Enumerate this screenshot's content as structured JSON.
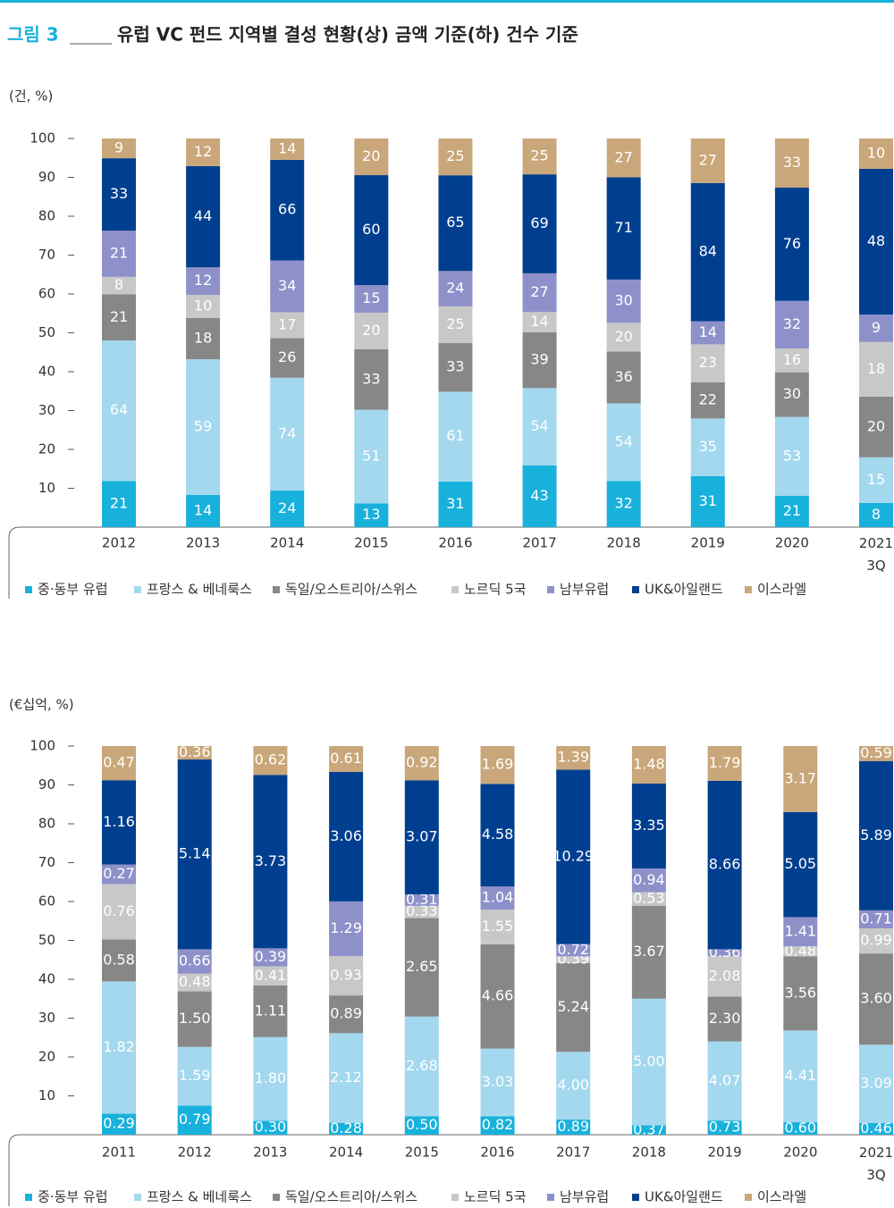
{
  "header": {
    "figure_label": "그림 3",
    "title": "유럽 VC 펀드 지역별 결성 현황(상) 금액 기준(하) 건수 기준"
  },
  "chart_data": [
    {
      "type": "bar",
      "stacking": "percent",
      "unit_label": "(건, %)",
      "categories": [
        "2012",
        "2013",
        "2014",
        "2015",
        "2016",
        "2017",
        "2018",
        "2019",
        "2020",
        "2021\n3Q"
      ],
      "ylim": [
        0,
        100
      ],
      "yticks": [
        10,
        20,
        30,
        40,
        50,
        60,
        70,
        80,
        90,
        100
      ],
      "series": [
        {
          "name": "중·동부 유럽",
          "color": "#18b1dc",
          "values": [
            21,
            14,
            24,
            13,
            31,
            43,
            32,
            31,
            21,
            8
          ]
        },
        {
          "name": "프랑스 & 베네룩스",
          "color": "#a3d8ee",
          "values": [
            64,
            59,
            74,
            51,
            61,
            54,
            54,
            35,
            53,
            15
          ]
        },
        {
          "name": "독일/오스트리아/스위스",
          "color": "#878787",
          "values": [
            21,
            18,
            26,
            33,
            33,
            39,
            36,
            22,
            30,
            20
          ]
        },
        {
          "name": "노르딕 5국",
          "color": "#c8c8c8",
          "values": [
            8,
            10,
            17,
            20,
            25,
            14,
            20,
            23,
            16,
            18
          ]
        },
        {
          "name": "남부유럽",
          "color": "#8e91c9",
          "values": [
            21,
            12,
            34,
            15,
            24,
            27,
            30,
            14,
            32,
            9
          ]
        },
        {
          "name": "UK&아일랜드",
          "color": "#003f8f",
          "values": [
            33,
            44,
            66,
            60,
            65,
            69,
            71,
            84,
            76,
            48
          ]
        },
        {
          "name": "이스라엘",
          "color": "#c9a77a",
          "values": [
            9,
            12,
            14,
            20,
            25,
            25,
            27,
            27,
            33,
            10
          ]
        }
      ]
    },
    {
      "type": "bar",
      "stacking": "percent",
      "unit_label": "(€십억, %)",
      "categories": [
        "2011",
        "2012",
        "2013",
        "2014",
        "2015",
        "2016",
        "2017",
        "2018",
        "2019",
        "2020",
        "2021\n3Q"
      ],
      "ylim": [
        0,
        100
      ],
      "yticks": [
        10,
        20,
        30,
        40,
        50,
        60,
        70,
        80,
        90,
        100
      ],
      "series": [
        {
          "name": "중·동부 유럽",
          "color": "#18b1dc",
          "values": [
            0.29,
            0.79,
            0.3,
            0.28,
            0.5,
            0.82,
            0.89,
            0.37,
            0.73,
            0.6,
            0.46
          ],
          "value_labels": [
            "0.29",
            "0.79",
            "0.30",
            "0.28",
            "0.50",
            "0.82",
            "0.89",
            "0.37",
            "0.73",
            "0.60",
            "0.46"
          ]
        },
        {
          "name": "프랑스 & 베네룩스",
          "color": "#a3d8ee",
          "values": [
            1.82,
            1.59,
            1.8,
            2.12,
            2.68,
            3.03,
            4.0,
            5.0,
            4.07,
            4.41,
            3.09
          ],
          "value_labels": [
            "1.82",
            "1.59",
            "1.80",
            "2.12",
            "2.68",
            "3.03",
            "4.00",
            "5.00",
            "4.07",
            "4.41",
            "3.09"
          ]
        },
        {
          "name": "독일/오스트리아/스위스",
          "color": "#878787",
          "values": [
            0.58,
            1.5,
            1.11,
            0.89,
            2.65,
            4.66,
            5.24,
            3.67,
            2.3,
            3.56,
            3.6
          ],
          "value_labels": [
            "0.58",
            "1.50",
            "1.11",
            "0.89",
            "2.65",
            "4.66",
            "5.24",
            "3.67",
            "2.30",
            "3.56",
            "3.60"
          ]
        },
        {
          "name": "노르딕 5국",
          "color": "#c8c8c8",
          "values": [
            0.76,
            0.48,
            0.41,
            0.93,
            0.33,
            1.55,
            0.39,
            0.53,
            2.08,
            0.48,
            0.99
          ],
          "value_labels": [
            "0.76",
            "0.48",
            "0.41",
            "0.93",
            "0.33",
            "1.55",
            "0.39",
            "0.53",
            "2.08",
            "0.48",
            "0.99"
          ]
        },
        {
          "name": "남부유럽",
          "color": "#8e91c9",
          "values": [
            0.27,
            0.66,
            0.39,
            1.29,
            0.31,
            1.04,
            0.72,
            0.94,
            0.36,
            1.41,
            0.71
          ],
          "value_labels": [
            "0.27",
            "0.66",
            "0.39",
            "1.29",
            "0.31",
            "1.04",
            "0.72",
            "0.94",
            "0.36",
            "1.41",
            "0.71"
          ]
        },
        {
          "name": "UK&아일랜드",
          "color": "#003f8f",
          "values": [
            1.16,
            5.14,
            3.73,
            3.06,
            3.07,
            4.58,
            10.29,
            3.35,
            8.66,
            5.05,
            5.89
          ],
          "value_labels": [
            "1.16",
            "5.14",
            "3.73",
            "3.06",
            "3.07",
            "4.58",
            "10.29",
            "3.35",
            "8.66",
            "5.05",
            "5.89"
          ]
        },
        {
          "name": "이스라엘",
          "color": "#c9a77a",
          "values": [
            0.47,
            0.36,
            0.62,
            0.61,
            0.92,
            1.69,
            1.39,
            1.48,
            1.79,
            3.17,
            0.59
          ],
          "value_labels": [
            "0.47",
            "0.36",
            "0.62",
            "0.61",
            "0.92",
            "1.69",
            "1.39",
            "1.48",
            "1.79",
            "3.17",
            "0.59"
          ]
        }
      ]
    }
  ]
}
